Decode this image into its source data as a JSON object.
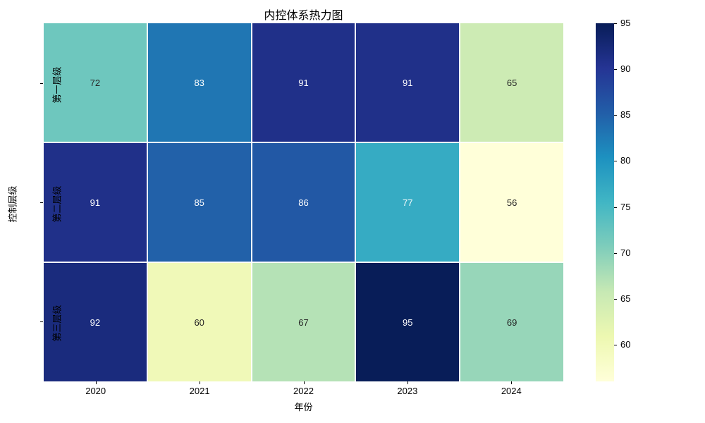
{
  "title": "内控体系热力图",
  "chart_data": {
    "type": "heatmap",
    "title": "内控体系热力图",
    "xlabel": "年份",
    "ylabel": "控制层级",
    "categories_x": [
      "2020",
      "2021",
      "2022",
      "2023",
      "2024"
    ],
    "categories_y": [
      "第一层级",
      "第二层级",
      "第三层级"
    ],
    "values": [
      [
        72,
        83,
        91,
        91,
        65
      ],
      [
        91,
        85,
        86,
        77,
        56
      ],
      [
        92,
        60,
        67,
        95,
        69
      ]
    ],
    "vmin": 56,
    "vmax": 95,
    "colormap": "YlGnBu",
    "colormap_stops": [
      "#ffffd9",
      "#edf8b1",
      "#c7e9b4",
      "#7fcdbb",
      "#41b6c4",
      "#1d91c0",
      "#225ea8",
      "#253494",
      "#081d58"
    ],
    "colorbar_ticks": [
      60,
      65,
      70,
      75,
      80,
      85,
      90,
      95
    ],
    "colorbar_position": "right",
    "annotation_color_dark": "#262626",
    "annotation_color_light": "#ffffff",
    "grid_line_color": "#ffffff"
  }
}
